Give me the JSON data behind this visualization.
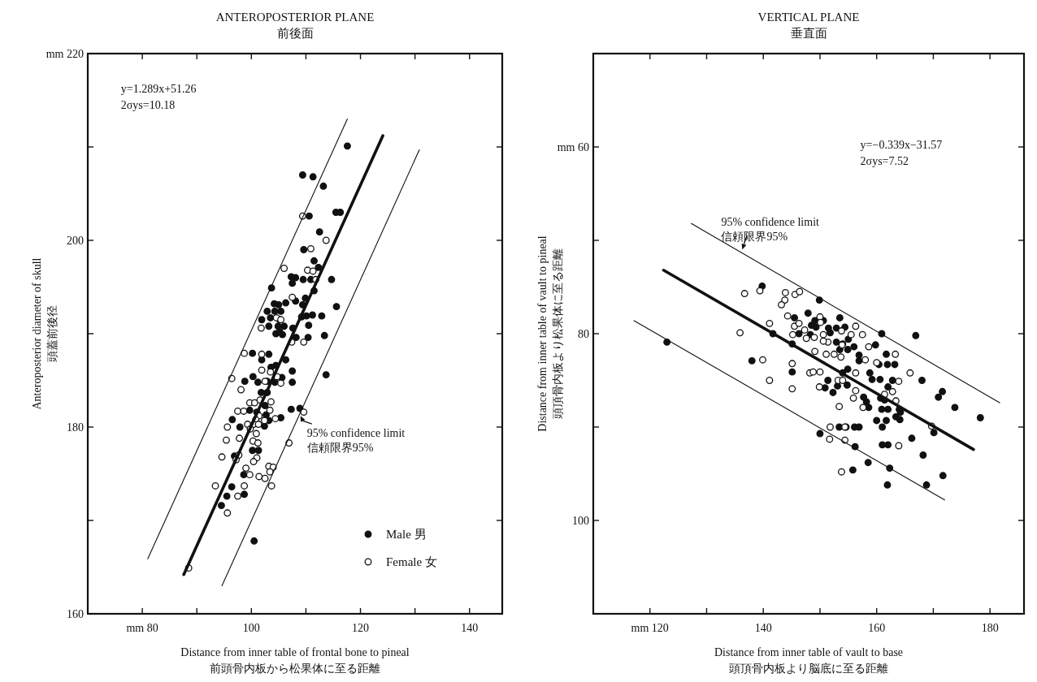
{
  "chart_data": [
    {
      "type": "scatter",
      "title": "ANTEROPOSTERIOR PLANE",
      "subtitle": "前後面",
      "xlabel": "Distance from inner table of frontal bone to pineal\n前頭骨内板から松果体に至る距離",
      "ylabel": "Anteroposterior diameter of skull\n頭蓋前後径",
      "xlim": [
        70,
        146
      ],
      "ylim": [
        160,
        220
      ],
      "xticks": [
        {
          "value": 80,
          "label": "mm 80"
        },
        {
          "value": 90,
          "label": null
        },
        100,
        {
          "value": 110,
          "label": null
        },
        120,
        {
          "value": 130,
          "label": null
        },
        140
      ],
      "yticks": [
        160,
        {
          "value": 170,
          "label": null
        },
        180,
        {
          "value": 190,
          "label": null
        },
        200,
        {
          "value": 210,
          "label": null
        },
        {
          "value": 220,
          "label": "mm 220"
        }
      ],
      "legend": "bottom right",
      "annotations": [
        "y=1.289x+51.26",
        "2σys=10.18",
        {
          "text": "95% confidence limit\n信頼限界95%",
          "x": 109,
          "y": 181.2
        }
      ],
      "series": [
        {
          "name": "Male 男",
          "marker": "circle",
          "color": "#111111",
          "x": [
            117.6,
            109.4,
            111.3,
            113.2,
            115.5,
            116.3,
            110.6,
            112.5,
            109.6,
            111.5,
            112.3,
            107.3,
            108.1,
            109.5,
            110.9,
            114.7,
            107.5,
            103.7,
            109.9,
            111.5,
            108.1,
            106.3,
            104.2,
            105.0,
            109.4,
            115.6,
            102.9,
            104.3,
            105.4,
            110.1,
            111.2,
            109.2,
            112.9,
            101.9,
            103.5,
            105.2,
            103.2,
            104.9,
            106.0,
            110.5,
            107.6,
            104.5,
            105.7,
            105.2,
            108.2,
            110.4,
            113.4,
            100.2,
            103.2,
            101.9,
            106.3,
            103.6,
            104.5,
            107.5,
            113.7,
            98.8,
            100.3,
            101.2,
            102.9,
            104.3,
            105.6,
            107.5,
            101.8,
            102.9,
            102.5,
            107.3,
            108.9,
            99.7,
            101.0,
            102.7,
            105.4,
            96.5,
            103.2,
            97.9,
            102.4,
            100.2,
            101.3,
            96.9,
            98.6,
            96.4,
            95.5,
            98.7,
            94.5,
            100.5
          ],
          "values": [
            210.1,
            207.0,
            206.8,
            205.8,
            203.0,
            203.0,
            202.6,
            200.9,
            199.0,
            197.8,
            197.1,
            196.1,
            196.0,
            195.8,
            195.8,
            195.8,
            195.4,
            194.9,
            193.8,
            194.6,
            193.5,
            193.3,
            193.2,
            193.1,
            193.1,
            192.9,
            192.4,
            192.4,
            192.4,
            191.9,
            192.0,
            191.8,
            191.9,
            191.5,
            191.7,
            191.5,
            190.8,
            190.8,
            190.8,
            190.9,
            190.6,
            190.0,
            189.9,
            190.2,
            189.6,
            189.6,
            189.8,
            187.9,
            187.8,
            187.2,
            187.2,
            186.4,
            186.6,
            186.0,
            185.6,
            184.9,
            185.4,
            184.8,
            184.9,
            184.8,
            185.3,
            184.8,
            183.7,
            183.7,
            182.3,
            181.9,
            182.0,
            181.8,
            181.6,
            181.3,
            181.0,
            180.8,
            180.7,
            180.0,
            180.1,
            177.5,
            177.5,
            176.9,
            174.9,
            173.6,
            172.6,
            172.8,
            171.6,
            167.8
          ]
        },
        {
          "name": "Female 女",
          "marker": "circle",
          "color": "#ffffff",
          "x": [
            109.4,
            113.7,
            110.9,
            106.0,
            110.3,
            111.3,
            111.8,
            107.5,
            101.8,
            104.6,
            105.4,
            107.4,
            109.6,
            101.9,
            101.9,
            96.4,
            103.5,
            104.7,
            105.4,
            102.5,
            98.7,
            98.1,
            99.7,
            100.6,
            103.6,
            101.6,
            97.5,
            98.6,
            103.4,
            104.4,
            109.6,
            101.4,
            100.8,
            102.4,
            99.3,
            100.4,
            101.3,
            95.6,
            99.8,
            100.9,
            97.8,
            95.4,
            100.3,
            101.2,
            106.9,
            94.6,
            97.7,
            97.2,
            101.0,
            100.4,
            99.0,
            99.7,
            103.2,
            104.0,
            103.4,
            101.4,
            102.5,
            93.4,
            98.7,
            103.7,
            97.5,
            95.6,
            88.5
          ],
          "values": [
            202.6,
            200.0,
            199.1,
            197.0,
            196.8,
            196.7,
            195.8,
            193.9,
            190.6,
            191.7,
            191.5,
            189.1,
            189.1,
            187.8,
            186.1,
            185.2,
            185.9,
            185.4,
            184.7,
            184.9,
            187.9,
            184.0,
            182.6,
            182.6,
            182.7,
            182.9,
            181.7,
            181.7,
            181.8,
            180.9,
            181.6,
            181.2,
            180.8,
            180.7,
            180.3,
            180.3,
            180.3,
            180.0,
            179.8,
            179.3,
            178.8,
            178.6,
            178.5,
            178.3,
            178.3,
            176.8,
            177.0,
            176.5,
            176.7,
            176.3,
            175.6,
            174.9,
            175.8,
            175.7,
            175.2,
            174.7,
            174.5,
            173.7,
            173.7,
            173.7,
            172.6,
            170.8,
            164.9
          ]
        },
        {
          "type": "line",
          "color": "#111111",
          "x": [
            87.6,
            124.1
          ],
          "values": [
            164.2,
            211.2
          ]
        },
        {
          "type": "line",
          "color": "#111111",
          "x": [
            81.0,
            117.6
          ],
          "values": [
            165.9,
            213.0
          ]
        },
        {
          "type": "line",
          "color": "#111111",
          "x": [
            94.6,
            130.8
          ],
          "values": [
            163.0,
            209.7
          ]
        }
      ]
    },
    {
      "type": "scatter",
      "title": "VERTICAL PLANE",
      "subtitle": "垂直面",
      "xlabel": "Distance from inner table of vault to base\n頭頂骨内板より脳底に至る距離",
      "ylabel": "Distance from inner table of vault to pineal\n頭頂骨内板より松果体に至る距離",
      "xlim": [
        110,
        186
      ],
      "ylim": [
        110,
        50
      ],
      "xticks": [
        {
          "value": 120,
          "label": "mm 120"
        },
        {
          "value": 130,
          "label": null
        },
        140,
        {
          "value": 150,
          "label": null
        },
        160,
        {
          "value": 170,
          "label": null
        },
        180
      ],
      "yticks": [
        {
          "value": 60,
          "label": "mm 60"
        },
        {
          "value": 70,
          "label": null
        },
        80,
        {
          "value": 90,
          "label": null
        },
        100
      ],
      "annotations": [
        "y=−0.339x−31.57",
        "2σys=7.52",
        {
          "text": "95% confidence limit\n信頼限界95%",
          "x": 136.3,
          "y": 71.0
        }
      ],
      "series": [
        {
          "marker": "circle",
          "color": "#111111",
          "x": [
            139.8,
            123.0,
            138.0,
            149.9,
            147.9,
            145.5,
            153.5,
            149.1,
            150.6,
            148.5,
            149.3,
            151.5,
            152.9,
            154.4,
            151.8,
            146.3,
            145.1,
            141.7,
            148.3,
            155.0,
            152.9,
            154.0,
            156.0,
            153.5,
            154.9,
            159.8,
            160.9,
            166.9,
            156.9,
            156.9,
            161.7,
            160.4,
            161.9,
            163.2,
            145.1,
            154.9,
            154.0,
            158.8,
            151.4,
            153.1,
            154.8,
            159.2,
            160.6,
            162.8,
            150.9,
            152.3,
            162.0,
            168.0,
            157.7,
            158.2,
            158.6,
            160.7,
            161.4,
            160.9,
            162.0,
            164.0,
            164.2,
            163.4,
            164.1,
            170.9,
            171.6,
            173.8,
            178.3,
            160.0,
            161.7,
            161.0,
            150.0,
            153.4,
            154.6,
            156.1,
            156.9,
            170.1,
            161.0,
            162.0,
            166.2,
            156.2,
            168.2,
            158.5,
            155.8,
            162.3,
            171.7,
            161.9,
            168.8
          ],
          "values": [
            74.9,
            80.9,
            82.9,
            76.4,
            77.8,
            78.3,
            78.3,
            78.6,
            78.6,
            79.1,
            79.3,
            79.4,
            79.4,
            79.3,
            79.9,
            80.0,
            81.1,
            80.0,
            80.1,
            80.6,
            80.9,
            81.1,
            81.4,
            81.7,
            81.7,
            81.2,
            80.0,
            80.2,
            82.3,
            82.9,
            82.2,
            83.3,
            83.3,
            83.3,
            84.1,
            83.8,
            84.2,
            84.2,
            85.0,
            85.6,
            85.5,
            84.9,
            84.9,
            85.0,
            85.8,
            86.3,
            85.7,
            85.0,
            86.8,
            87.3,
            87.9,
            86.9,
            87.1,
            88.1,
            88.1,
            88.1,
            88.4,
            88.9,
            89.2,
            86.8,
            86.2,
            87.9,
            89.0,
            89.3,
            89.3,
            90.0,
            90.7,
            90.0,
            90.0,
            90.0,
            90.0,
            90.6,
            91.9,
            91.9,
            91.2,
            92.1,
            93.0,
            93.8,
            94.6,
            94.4,
            95.2,
            96.2,
            96.2
          ]
        },
        {
          "marker": "circle",
          "color": "#ffffff",
          "x": [
            136.7,
            139.4,
            143.9,
            145.6,
            146.4,
            143.8,
            143.2,
            144.3,
            141.1,
            145.5,
            146.3,
            135.9,
            145.2,
            147.3,
            150.0,
            150.1,
            147.6,
            149.0,
            150.6,
            151.4,
            150.6,
            153.8,
            155.5,
            156.3,
            157.5,
            153.9,
            149.1,
            151.1,
            152.5,
            153.7,
            158.0,
            158.6,
            139.9,
            145.1,
            160.0,
            163.3,
            148.2,
            148.8,
            150.0,
            156.3,
            141.1,
            153.2,
            154.0,
            165.9,
            163.9,
            145.1,
            149.9,
            156.3,
            162.8,
            161.4,
            155.9,
            157.6,
            153.4,
            163.4,
            169.7,
            151.8,
            154.4,
            151.7,
            154.4,
            163.9,
            153.8
          ],
          "values": [
            75.7,
            75.4,
            75.6,
            75.8,
            75.5,
            76.4,
            76.9,
            78.1,
            78.9,
            79.2,
            78.9,
            79.9,
            80.1,
            79.6,
            78.2,
            78.8,
            80.5,
            80.4,
            80.1,
            80.9,
            80.8,
            79.7,
            80.1,
            79.2,
            80.1,
            81.2,
            81.9,
            82.2,
            82.2,
            82.5,
            82.8,
            81.4,
            82.8,
            83.2,
            83.1,
            82.2,
            84.2,
            84.1,
            84.1,
            84.2,
            85.0,
            85.0,
            85.0,
            84.2,
            85.1,
            85.9,
            85.7,
            86.1,
            86.2,
            86.5,
            86.9,
            87.9,
            87.8,
            87.2,
            89.9,
            90.0,
            90.0,
            91.3,
            91.4,
            92.0,
            94.8
          ]
        },
        {
          "type": "line",
          "color": "#111111",
          "x": [
            122.4,
            177.1
          ],
          "values": [
            73.2,
            92.4
          ]
        },
        {
          "type": "line",
          "color": "#111111",
          "x": [
            127.3,
            181.7
          ],
          "values": [
            68.2,
            87.4
          ]
        },
        {
          "type": "line",
          "color": "#111111",
          "x": [
            117.2,
            172.0
          ],
          "values": [
            78.6,
            97.8
          ]
        }
      ]
    }
  ]
}
